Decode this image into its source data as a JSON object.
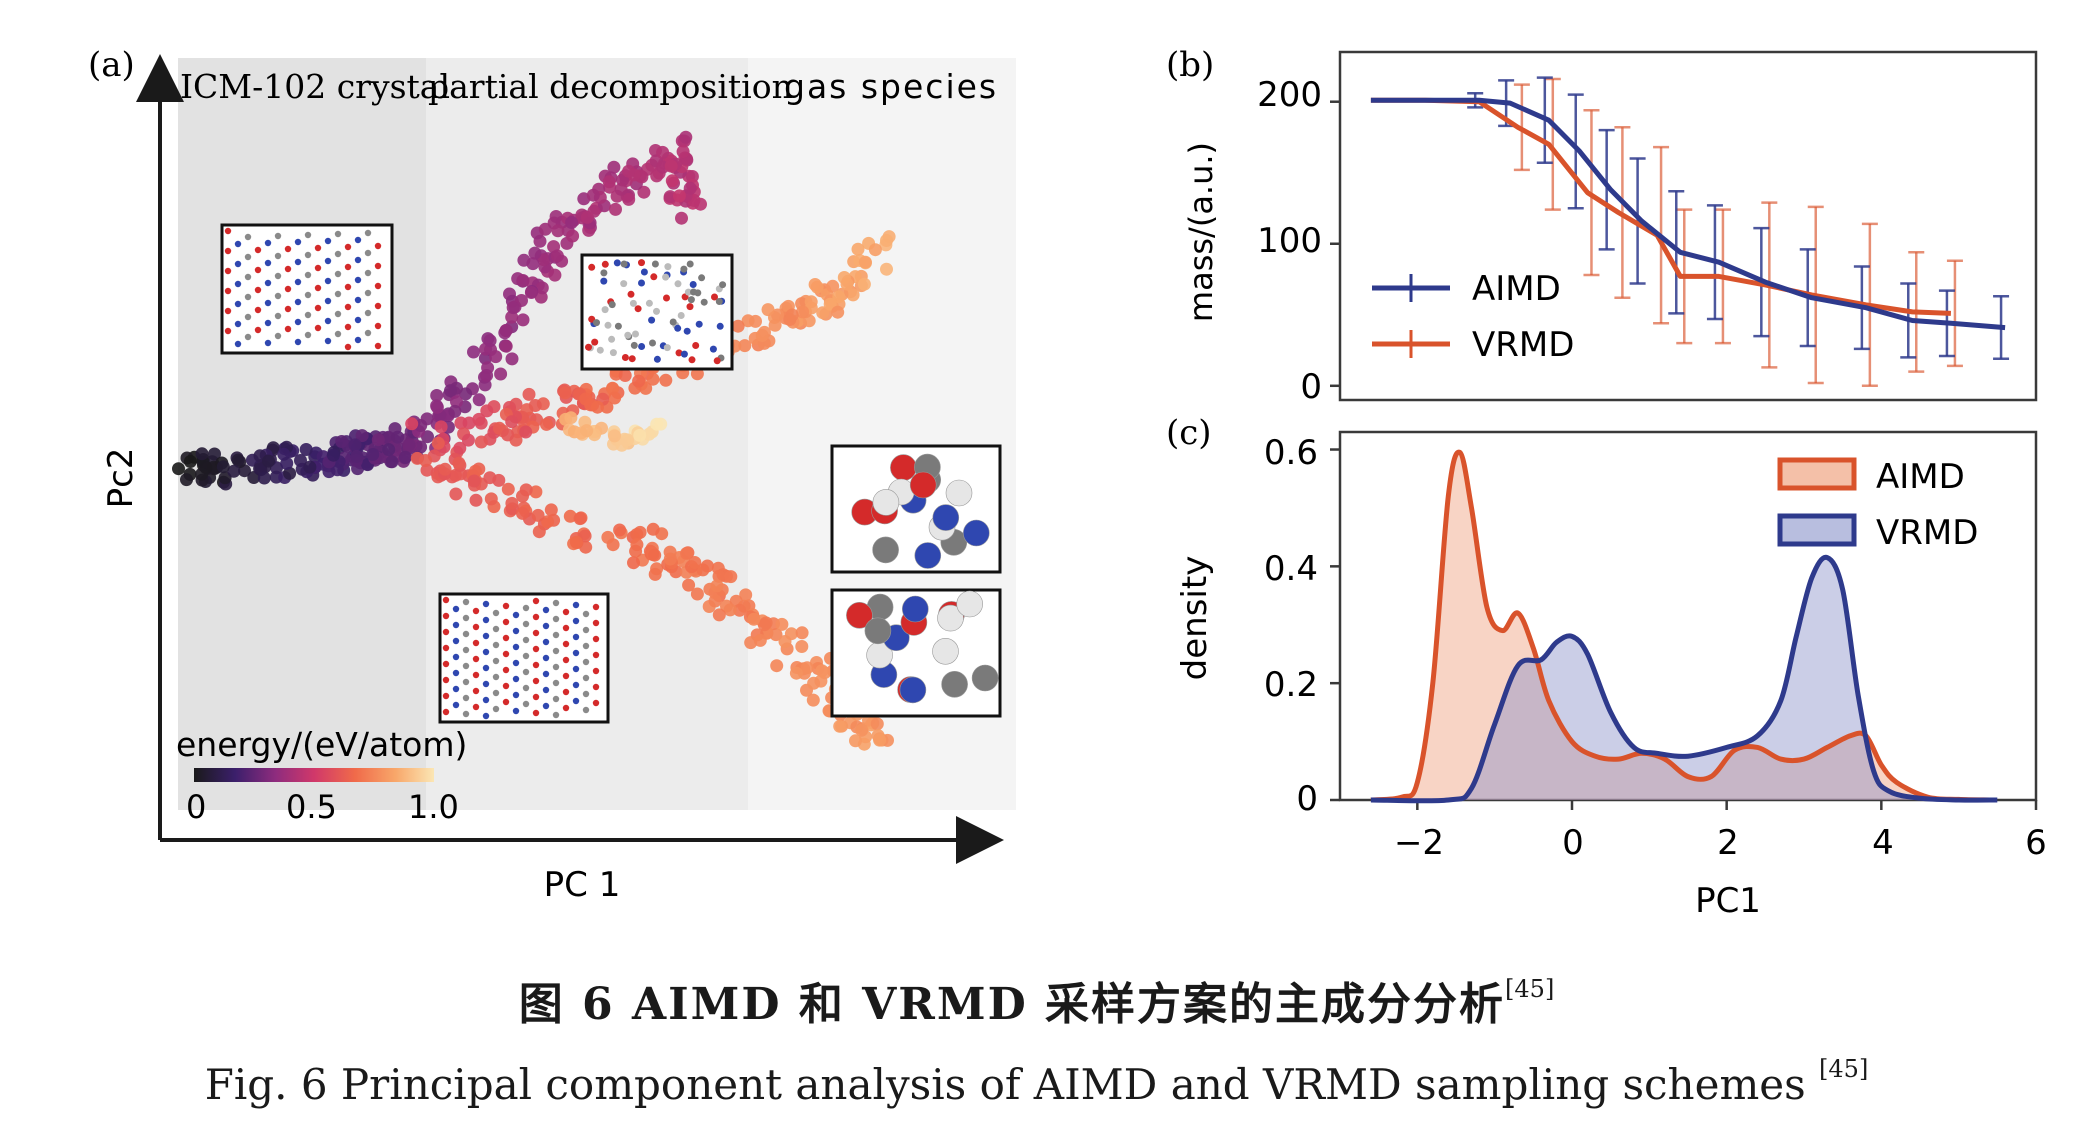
{
  "panel_a": {
    "label": "(a)",
    "region_labels": [
      "ICM-102 crystal",
      "partial decomposition",
      "gas species"
    ],
    "xlabel": "PC 1",
    "ylabel": "Pc2",
    "colorbar": {
      "title": "energy/(eV/atom)",
      "ticks": [
        "0",
        "0.5",
        "1.0"
      ],
      "colors": [
        "#1a1a1a",
        "#3b1f6b",
        "#8e2c7e",
        "#d0386a",
        "#f06a4a",
        "#f8a76a",
        "#fbe6b4"
      ]
    },
    "shading_colors": [
      "#e2e2e2",
      "#ececec",
      "#f4f4f4"
    ]
  },
  "panel_b": {
    "label": "(b)",
    "ylabel": "mass/(a.u.)",
    "yticks": [
      "0",
      "100",
      "200"
    ],
    "legend": [
      "AIMD",
      "VRMD"
    ],
    "colors": {
      "AIMD": "#2e3a8c",
      "VRMD": "#d9532b"
    }
  },
  "panel_c": {
    "label": "(c)",
    "ylabel": "density",
    "xlabel": "PC1",
    "yticks": [
      "0",
      "0.2",
      "0.4",
      "0.6"
    ],
    "xticks": [
      "−2",
      "0",
      "2",
      "4",
      "6"
    ],
    "legend": [
      "AIMD",
      "VRMD"
    ],
    "colors": {
      "AIMD": "#d9532b",
      "VRMD": "#2e3a8c"
    }
  },
  "chart_data": [
    {
      "type": "scatter",
      "panel": "a",
      "xlabel": "PC 1",
      "ylabel": "Pc2",
      "colorbar_label": "energy/(eV/atom)",
      "colorbar_range": [
        0,
        1.0
      ]
    },
    {
      "type": "line",
      "panel": "b",
      "ylabel": "mass/(a.u.)",
      "xlim": [
        -3,
        6
      ],
      "ylim": [
        -10,
        235
      ],
      "yticks": [
        0,
        100,
        200
      ],
      "legend_position": "bottom-left",
      "series": [
        {
          "name": "AIMD",
          "x": [
            -2.6,
            -1.9,
            -1.2,
            -0.8,
            -0.3,
            0.1,
            0.5,
            0.9,
            1.4,
            1.9,
            2.5,
            3.1,
            3.8,
            4.4,
            4.9,
            5.6
          ],
          "y": [
            201,
            201,
            201,
            199,
            187,
            165,
            138,
            116,
            94,
            87,
            73,
            62,
            55,
            46,
            44,
            41
          ],
          "err": [
            0,
            0,
            5,
            16,
            30,
            40,
            42,
            44,
            43,
            40,
            38,
            34,
            29,
            26,
            23,
            22
          ]
        },
        {
          "name": "VRMD",
          "x": [
            -2.6,
            -1.9,
            -1.2,
            -0.7,
            -0.3,
            0.2,
            0.6,
            1.1,
            1.4,
            1.9,
            2.5,
            3.1,
            3.8,
            4.4,
            4.9
          ],
          "y": [
            201,
            201,
            200,
            182,
            170,
            136,
            122,
            106,
            77,
            77,
            71,
            64,
            57,
            52,
            51
          ],
          "err": [
            0,
            0,
            0,
            30,
            46,
            58,
            60,
            62,
            47,
            47,
            58,
            62,
            57,
            42,
            37
          ]
        }
      ]
    },
    {
      "type": "area",
      "panel": "c",
      "xlabel": "PC1",
      "ylabel": "density",
      "xlim": [
        -3,
        6
      ],
      "ylim": [
        0,
        0.63
      ],
      "xticks": [
        -2,
        0,
        2,
        4,
        6
      ],
      "yticks": [
        0,
        0.2,
        0.4,
        0.6
      ],
      "legend_position": "top-right",
      "series": [
        {
          "name": "AIMD",
          "x": [
            -2.6,
            -2.2,
            -2.0,
            -1.8,
            -1.6,
            -1.45,
            -1.3,
            -1.1,
            -0.9,
            -0.7,
            -0.5,
            -0.3,
            0.0,
            0.3,
            0.6,
            0.9,
            1.2,
            1.5,
            1.8,
            2.1,
            2.4,
            2.7,
            3.0,
            3.3,
            3.6,
            3.8,
            4.0,
            4.2,
            4.6,
            5.0,
            5.4
          ],
          "y": [
            0.0,
            0.005,
            0.03,
            0.2,
            0.52,
            0.595,
            0.5,
            0.33,
            0.29,
            0.32,
            0.26,
            0.17,
            0.1,
            0.075,
            0.07,
            0.08,
            0.07,
            0.04,
            0.04,
            0.085,
            0.09,
            0.07,
            0.07,
            0.09,
            0.11,
            0.11,
            0.06,
            0.03,
            0.005,
            0.001,
            0.0
          ]
        },
        {
          "name": "VRMD",
          "x": [
            -2.6,
            -1.6,
            -1.3,
            -1.0,
            -0.7,
            -0.4,
            -0.2,
            0.0,
            0.2,
            0.5,
            0.8,
            1.1,
            1.5,
            2.0,
            2.4,
            2.7,
            2.9,
            3.1,
            3.3,
            3.5,
            3.7,
            3.9,
            4.1,
            4.5,
            5.0,
            5.5
          ],
          "y": [
            0.0,
            0.0,
            0.02,
            0.13,
            0.23,
            0.24,
            0.27,
            0.28,
            0.25,
            0.15,
            0.09,
            0.08,
            0.075,
            0.09,
            0.11,
            0.17,
            0.28,
            0.38,
            0.415,
            0.36,
            0.18,
            0.05,
            0.015,
            0.003,
            0.0,
            0.0
          ]
        }
      ]
    }
  ],
  "caption": {
    "cn": "图 6   AIMD 和 VRMD 采样方案的主成分分析",
    "en": "Fig. 6    Principal component analysis of AIMD and VRMD sampling schemes ",
    "ref": "[45]"
  }
}
